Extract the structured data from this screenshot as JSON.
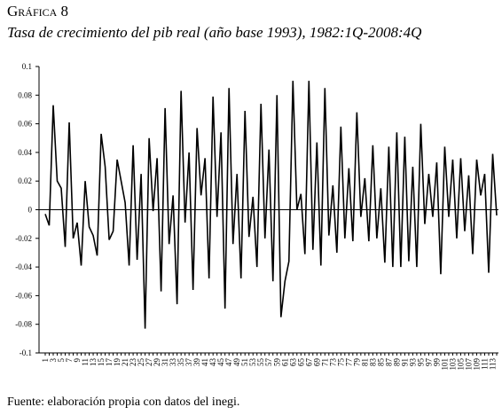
{
  "chart_data": {
    "type": "line",
    "title": "Gráfica 8",
    "subtitle": "Tasa de crecimiento del pib real (año base 1993), 1982:1Q-2008:4Q",
    "source": "Fuente: elaboración propia con datos del inegi.",
    "color": "#000000",
    "categories": [
      "1",
      null,
      "3",
      null,
      "5",
      null,
      "7",
      null,
      "9",
      null,
      "11",
      null,
      "13",
      null,
      "15",
      null,
      "17",
      null,
      "19",
      null,
      "21",
      null,
      "23",
      null,
      "25",
      null,
      "27",
      null,
      "29",
      null,
      "31",
      null,
      "33",
      null,
      "35",
      null,
      "37",
      null,
      "39",
      null,
      "41",
      null,
      "43",
      null,
      "45",
      null,
      "47",
      null,
      "49",
      null,
      "51",
      null,
      "53",
      null,
      "55",
      null,
      "57",
      null,
      "59",
      null,
      "61",
      null,
      "63",
      null,
      "65",
      null,
      "67",
      null,
      "69",
      null,
      "71",
      null,
      "73",
      null,
      "75",
      null,
      "77",
      null,
      "79",
      null,
      "81",
      null,
      "83",
      null,
      "85",
      null,
      "87",
      null,
      "89",
      null,
      "91",
      null,
      "93",
      null,
      "95",
      null,
      "97",
      null,
      "99",
      null,
      "101",
      null,
      "103",
      null,
      "105",
      null,
      "107",
      null,
      "109",
      null,
      "111",
      null,
      "113",
      null
    ],
    "values": [
      -0.003,
      -0.011,
      0.073,
      0.02,
      0.015,
      -0.026,
      0.061,
      -0.02,
      -0.009,
      -0.039,
      0.02,
      -0.012,
      -0.018,
      -0.032,
      0.053,
      0.03,
      -0.021,
      -0.015,
      0.035,
      0.02,
      0.005,
      -0.039,
      0.045,
      -0.035,
      0.025,
      -0.083,
      0.05,
      -0.001,
      0.036,
      -0.057,
      0.071,
      -0.024,
      0.01,
      -0.066,
      0.083,
      -0.009,
      0.04,
      -0.056,
      0.057,
      0.01,
      0.036,
      -0.048,
      0.079,
      -0.005,
      0.054,
      -0.069,
      0.085,
      -0.024,
      0.025,
      -0.048,
      0.069,
      -0.019,
      0.009,
      -0.04,
      0.074,
      -0.02,
      0.042,
      -0.05,
      0.08,
      -0.075,
      -0.05,
      -0.036,
      0.09,
      0,
      0.011,
      -0.031,
      0.09,
      -0.028,
      0.047,
      -0.039,
      0.085,
      -0.018,
      0.017,
      -0.03,
      0.058,
      -0.02,
      0.029,
      -0.022,
      0.068,
      -0.005,
      0.022,
      -0.022,
      0.045,
      -0.02,
      0.015,
      -0.037,
      0.044,
      -0.04,
      0.054,
      -0.04,
      0.051,
      -0.036,
      0.03,
      -0.04,
      0.06,
      -0.01,
      0.025,
      -0.005,
      0.033,
      -0.045,
      0.044,
      -0.005,
      0.035,
      -0.02,
      0.036,
      -0.015,
      0.024,
      -0.031,
      0.035,
      0.01,
      0.025,
      -0.044,
      0.039,
      -0.004
    ],
    "ylim": [
      -0.1,
      0.1
    ],
    "yticks": [
      -0.1,
      -0.08,
      -0.06,
      -0.04,
      -0.02,
      0,
      0.02,
      0.04,
      0.06,
      0.08,
      0.1
    ]
  }
}
